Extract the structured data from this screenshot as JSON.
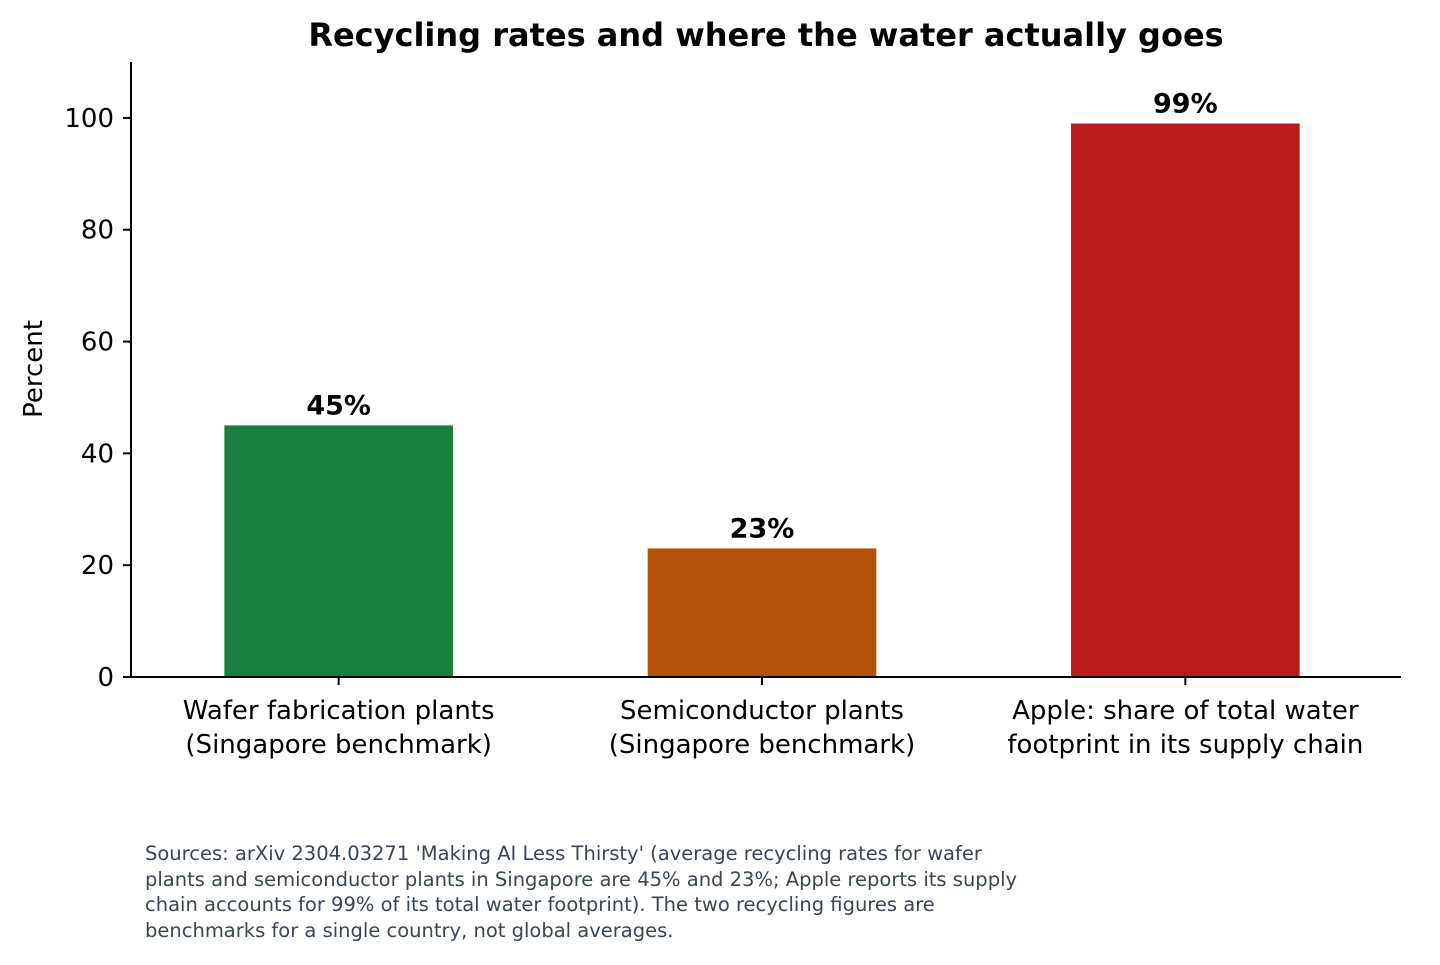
{
  "chart_data": {
    "type": "bar",
    "title": "Recycling rates and where the water actually goes",
    "ylabel": "Percent",
    "xlabel": "",
    "ylim": [
      0,
      110
    ],
    "yticks": [
      0,
      20,
      40,
      60,
      80,
      100
    ],
    "categories": [
      [
        "Wafer fabrication plants",
        "(Singapore benchmark)"
      ],
      [
        "Semiconductor plants",
        "(Singapore benchmark)"
      ],
      [
        "Apple: share of total water",
        "footprint in its supply chain"
      ]
    ],
    "values": [
      45,
      23,
      99
    ],
    "value_labels": [
      "45%",
      "23%",
      "99%"
    ],
    "colors": [
      "#17803f",
      "#b3530b",
      "#b71c1e"
    ],
    "grid": false,
    "legend": "none"
  },
  "source_note": "Sources: arXiv 2304.03271 'Making AI Less Thirsty' (average recycling rates for wafer\nplants and semiconductor plants in Singapore are 45% and 23%; Apple reports its supply\nchain accounts for 99% of its total water footprint). The two recycling figures are\nbenchmarks for a single country, not global averages."
}
